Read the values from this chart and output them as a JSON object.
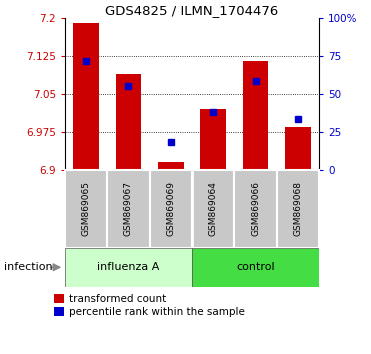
{
  "title": "GDS4825 / ILMN_1704476",
  "samples": [
    "GSM869065",
    "GSM869067",
    "GSM869069",
    "GSM869064",
    "GSM869066",
    "GSM869068"
  ],
  "red_values": [
    7.19,
    7.09,
    6.915,
    7.02,
    7.115,
    6.985
  ],
  "blue_values": [
    7.115,
    7.065,
    6.955,
    7.015,
    7.075,
    7.0
  ],
  "ylim_left": [
    6.9,
    7.2
  ],
  "ylim_right": [
    0,
    100
  ],
  "yticks_left": [
    6.9,
    6.975,
    7.05,
    7.125,
    7.2
  ],
  "yticks_right": [
    0,
    25,
    50,
    75,
    100
  ],
  "ytick_labels_left": [
    "6.9",
    "6.975",
    "7.05",
    "7.125",
    "7.2"
  ],
  "ytick_labels_right": [
    "0",
    "25",
    "50",
    "75",
    "100%"
  ],
  "base": 6.9,
  "group1_label": "influenza A",
  "group2_label": "control",
  "group1_color": "#ccffcc",
  "group2_color": "#44dd44",
  "infection_label": "infection",
  "bar_color": "#cc0000",
  "dot_color": "#0000cc",
  "legend_red": "transformed count",
  "legend_blue": "percentile rank within the sample",
  "bar_width": 0.6,
  "group_separator": 3,
  "n_samples": 6
}
